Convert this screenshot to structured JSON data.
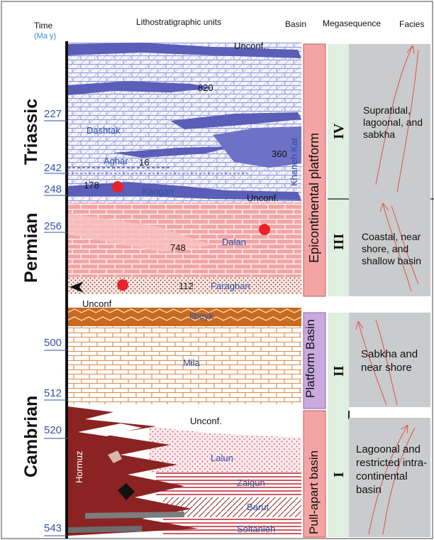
{
  "headers": {
    "time": "Time",
    "time_unit": "(Ma y)",
    "litho": "Lithostratigraphic units",
    "basin": "Basin",
    "megasequence": "Megasequence",
    "facies": "Facies"
  },
  "periods": [
    "Triassic",
    "Permian",
    "Cambrian"
  ],
  "ages": [
    "227",
    "242",
    "248",
    "256",
    "500",
    "512",
    "520",
    "543"
  ],
  "units": {
    "dashtak": "Dashtak",
    "aghar": "Aghar",
    "kangan": "Kangan",
    "dalan": "Dalan",
    "faraghan": "Faraghan",
    "ilbeyk": "Ilbeyk",
    "mila": "Mila",
    "lalun": "Lalun",
    "zaigun": "Zaigun",
    "barut": "Barut",
    "soltanieh": "Soltanieh",
    "hormuz": "Hormuz",
    "khaneh_kat": "Khaneh Kat"
  },
  "unconformities": [
    "Unconf.",
    "Unconf.",
    "Unconf",
    "Unconf."
  ],
  "thicknesses": [
    "820",
    "16",
    "178",
    "360",
    "748",
    "112"
  ],
  "basins": [
    "Epicontinental platform",
    "Platform Basin",
    "Pull-apart basin"
  ],
  "megasequences": [
    "IV",
    "III",
    "II",
    "I"
  ],
  "facies": [
    "Supratidal, lagoonal, and sabkha",
    "Coastal, near shore, and shallow basin",
    "Sabkha and near shore",
    "Lagoonal and restricted intra-continental basin"
  ],
  "colors": {
    "triassic_fill": "#ffffff",
    "triassic_pattern": "#8a8fd0",
    "triassic_tongues": "#5a5eb8",
    "permian_fill": "#f2a5a5",
    "permian_pattern": "#ffffff",
    "faraghan_dots": "#8b2323",
    "cambrian_upper": "#c86a22",
    "mila_lines": "#d98a4a",
    "hormuz": "#8b2323",
    "basin_pink": "#f4a4a4",
    "basin_lilac": "#c9a9de",
    "mega_green": "#e0efdf",
    "facies_gray": "#c9cbcc",
    "age_blue": "#3553a8",
    "marker_red": "#e8242a"
  }
}
